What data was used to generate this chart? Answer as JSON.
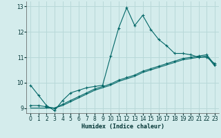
{
  "xlabel": "Humidex (Indice chaleur)",
  "ylabel": "",
  "bg_color": "#d4ecec",
  "grid_color": "#b8d8d8",
  "line_color": "#006666",
  "xlim": [
    -0.5,
    23.5
  ],
  "ylim": [
    8.8,
    13.2
  ],
  "yticks": [
    9,
    10,
    11,
    12,
    13
  ],
  "xticks": [
    0,
    1,
    2,
    3,
    4,
    5,
    6,
    7,
    8,
    9,
    10,
    11,
    12,
    13,
    14,
    15,
    16,
    17,
    18,
    19,
    20,
    21,
    22,
    23
  ],
  "series1_x": [
    0,
    1,
    2,
    3,
    4,
    5,
    6,
    7,
    8,
    9,
    10,
    11,
    12,
    13,
    14,
    15,
    16,
    17,
    18,
    19,
    20,
    21,
    22,
    23
  ],
  "series1_y": [
    9.9,
    9.5,
    9.1,
    8.9,
    9.3,
    9.6,
    9.7,
    9.8,
    9.85,
    9.9,
    11.05,
    12.15,
    12.95,
    12.25,
    12.65,
    12.1,
    11.7,
    11.45,
    11.15,
    11.15,
    11.1,
    11.0,
    11.0,
    10.75
  ],
  "series2_x": [
    0,
    1,
    2,
    3,
    4,
    5,
    6,
    7,
    8,
    9,
    10,
    11,
    12,
    13,
    14,
    15,
    16,
    17,
    18,
    19,
    20,
    21,
    22,
    23
  ],
  "series2_y": [
    9.1,
    9.1,
    9.05,
    9.0,
    9.15,
    9.3,
    9.45,
    9.6,
    9.75,
    9.85,
    9.95,
    10.1,
    10.2,
    10.3,
    10.45,
    10.55,
    10.65,
    10.75,
    10.85,
    10.95,
    11.0,
    11.05,
    11.1,
    10.7
  ],
  "series3_x": [
    0,
    1,
    2,
    3,
    4,
    5,
    6,
    7,
    8,
    9,
    10,
    11,
    12,
    13,
    14,
    15,
    16,
    17,
    18,
    19,
    20,
    21,
    22,
    23
  ],
  "series3_y": [
    9.0,
    9.0,
    9.0,
    9.0,
    9.1,
    9.25,
    9.4,
    9.55,
    9.7,
    9.8,
    9.9,
    10.05,
    10.15,
    10.25,
    10.4,
    10.5,
    10.6,
    10.7,
    10.8,
    10.9,
    10.95,
    11.0,
    11.05,
    10.65
  ]
}
